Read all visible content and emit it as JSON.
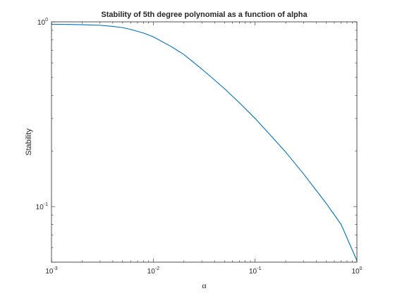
{
  "chart_data": {
    "type": "line",
    "title": "Stability of 5th degree polynomial as a function of alpha",
    "xlabel": "α",
    "ylabel": "Stability",
    "xscale": "log",
    "yscale": "log",
    "xlim": [
      0.001,
      1
    ],
    "ylim": [
      0.05,
      1
    ],
    "xticks": [
      {
        "value": 0.001,
        "base": "10",
        "exp": "-3"
      },
      {
        "value": 0.01,
        "base": "10",
        "exp": "-2"
      },
      {
        "value": 0.1,
        "base": "10",
        "exp": "-1"
      },
      {
        "value": 1,
        "base": "10",
        "exp": "0"
      }
    ],
    "yticks": [
      {
        "value": 0.1,
        "base": "10",
        "exp": "-1"
      },
      {
        "value": 1,
        "base": "10",
        "exp": "0"
      }
    ],
    "grid": false,
    "series": [
      {
        "color": "#0072bd",
        "x": [
          0.001,
          0.0015,
          0.002,
          0.003,
          0.004,
          0.005,
          0.006,
          0.008,
          0.01,
          0.015,
          0.02,
          0.03,
          0.05,
          0.07,
          0.1,
          0.15,
          0.2,
          0.3,
          0.5,
          0.7,
          1.0
        ],
        "y": [
          0.97,
          0.968,
          0.965,
          0.958,
          0.945,
          0.93,
          0.91,
          0.87,
          0.83,
          0.735,
          0.665,
          0.555,
          0.435,
          0.365,
          0.3,
          0.235,
          0.197,
          0.15,
          0.104,
          0.08,
          0.051
        ]
      }
    ]
  }
}
